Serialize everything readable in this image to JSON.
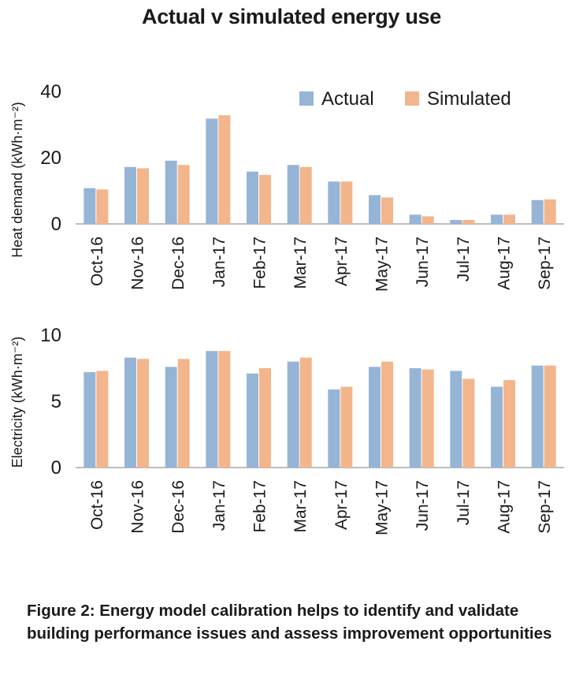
{
  "title": "Actual v simulated energy use",
  "caption": "Figure 2: Energy model calibration helps to identify and validate building performance issues and assess improvement opportunities",
  "colors": {
    "actual": "#96b4d6",
    "simulated": "#f3b58c",
    "axis": "#bdbdbd",
    "text": "#1a1a1a"
  },
  "chart_data": [
    {
      "type": "bar",
      "categories": [
        "Oct-16",
        "Nov-16",
        "Dec-16",
        "Jan-17",
        "Feb-17",
        "Mar-17",
        "Apr-17",
        "May-17",
        "Jun-17",
        "Jul-17",
        "Aug-17",
        "Sep-17"
      ],
      "series": [
        {
          "name": "Actual",
          "values": [
            10.8,
            17.2,
            19.1,
            31.8,
            15.8,
            17.8,
            12.8,
            8.7,
            2.8,
            1.2,
            2.8,
            7.2
          ]
        },
        {
          "name": "Simulated",
          "values": [
            10.4,
            16.8,
            17.8,
            32.8,
            14.8,
            17.2,
            12.8,
            8.0,
            2.3,
            1.2,
            2.8,
            7.4
          ]
        }
      ],
      "ylabel": "Heat demand (kWh·m⁻²)",
      "ylim": [
        0,
        40
      ],
      "yticks": [
        0,
        20,
        40
      ],
      "legend": "top-right",
      "grid": false
    },
    {
      "type": "bar",
      "categories": [
        "Oct-16",
        "Nov-16",
        "Dec-16",
        "Jan-17",
        "Feb-17",
        "Mar-17",
        "Apr-17",
        "May-17",
        "Jun-17",
        "Jul-17",
        "Aug-17",
        "Sep-17"
      ],
      "series": [
        {
          "name": "Actual",
          "values": [
            7.2,
            8.3,
            7.6,
            8.8,
            7.1,
            8.0,
            5.9,
            7.6,
            7.5,
            7.3,
            6.1,
            7.7
          ]
        },
        {
          "name": "Simulated",
          "values": [
            7.3,
            8.2,
            8.2,
            8.8,
            7.5,
            8.3,
            6.1,
            8.0,
            7.4,
            6.7,
            6.6,
            7.7
          ]
        }
      ],
      "ylabel": "Electricity (kWh·m⁻²)",
      "ylim": [
        0,
        10
      ],
      "yticks": [
        0,
        5,
        10
      ],
      "legend": "none",
      "grid": false
    }
  ]
}
